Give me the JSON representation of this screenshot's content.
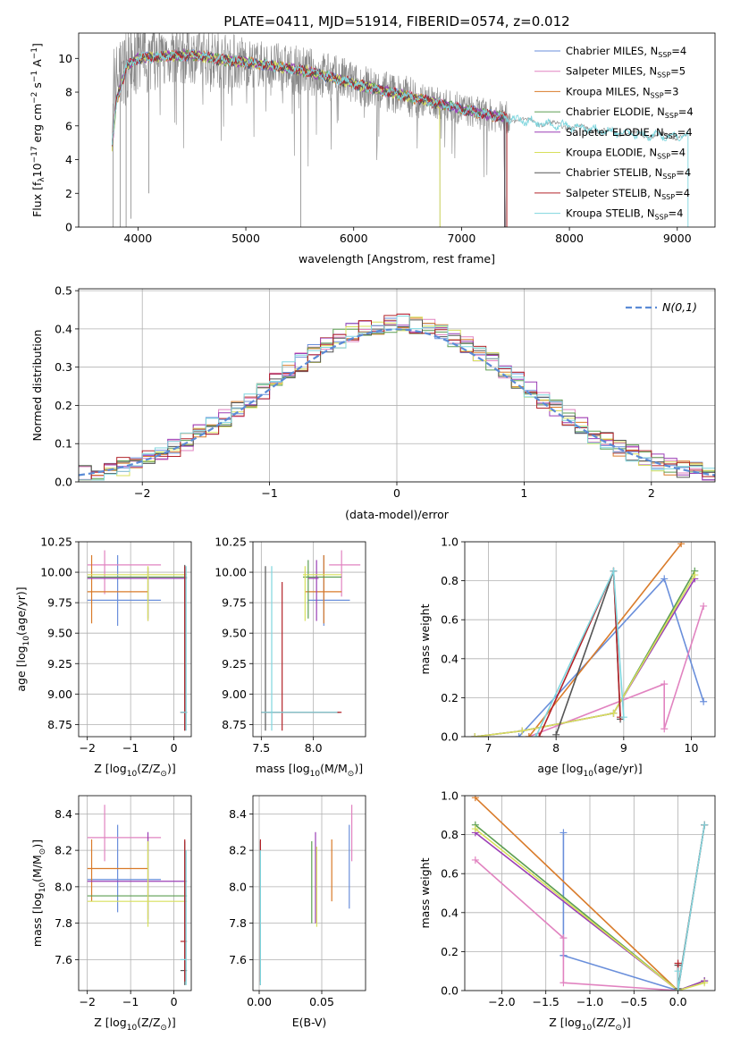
{
  "title": "PLATE=0411, MJD=51914, FIBERID=0574, z=0.012",
  "colors": {
    "Chabrier MILES": "#6a8fdb",
    "Salpeter MILES": "#e183c0",
    "Kroupa MILES": "#d97b2a",
    "Chabrier ELODIE": "#5c9e52",
    "Salpeter ELODIE": "#9b3fb6",
    "Kroupa ELODIE": "#d8e05c",
    "Chabrier STELIB": "#555555",
    "Salpeter STELIB": "#b3242a",
    "Kroupa STELIB": "#7fd6de",
    "data": "#888888",
    "normal": "#5b8bd6"
  },
  "chart_data": [
    {
      "type": "line",
      "panel": "spectrum",
      "xlabel": "wavelength [Angstrom, rest frame]",
      "ylabel_parts": {
        "a": "Flux [f",
        "b": "λ",
        "c": "10",
        "d": "−17",
        "e": " erg cm",
        "f": "−2",
        "g": " s",
        "h": "−1",
        "i": " A",
        "j": "−1",
        "k": "]"
      },
      "xlim": [
        3450,
        9350
      ],
      "ylim": [
        0,
        11.5
      ],
      "xticks": [
        4000,
        5000,
        6000,
        7000,
        8000,
        9000
      ],
      "yticks": [
        0,
        2,
        4,
        6,
        8,
        10
      ],
      "legend_position": "upper right",
      "legend": [
        {
          "base": "Chabrier MILES, N",
          "sub": "SSP",
          "tail": "=4"
        },
        {
          "base": "Salpeter MILES, N",
          "sub": "SSP",
          "tail": "=5"
        },
        {
          "base": "Kroupa MILES, N",
          "sub": "SSP",
          "tail": "=3"
        },
        {
          "base": "Chabrier ELODIE, N",
          "sub": "SSP",
          "tail": "=4"
        },
        {
          "base": "Salpeter ELODIE, N",
          "sub": "SSP",
          "tail": "=4"
        },
        {
          "base": "Kroupa ELODIE, N",
          "sub": "SSP",
          "tail": "=4"
        },
        {
          "base": "Chabrier STELIB, N",
          "sub": "SSP",
          "tail": "=4"
        },
        {
          "base": "Salpeter STELIB, N",
          "sub": "SSP",
          "tail": "=4"
        },
        {
          "base": "Kroupa STELIB, N",
          "sub": "SSP",
          "tail": "=4"
        }
      ],
      "continuum": [
        [
          3760,
          6.8
        ],
        [
          3800,
          8.9
        ],
        [
          3900,
          9.6
        ],
        [
          4000,
          10.0
        ],
        [
          4200,
          10.1
        ],
        [
          4500,
          10.2
        ],
        [
          4800,
          9.9
        ],
        [
          5200,
          9.6
        ],
        [
          5600,
          9.2
        ],
        [
          6000,
          8.5
        ],
        [
          6400,
          7.9
        ],
        [
          6800,
          7.3
        ],
        [
          7200,
          6.7
        ],
        [
          7500,
          6.4
        ],
        [
          7800,
          6.1
        ],
        [
          8000,
          6.0
        ],
        [
          8300,
          5.7
        ],
        [
          8600,
          5.5
        ],
        [
          8900,
          5.4
        ],
        [
          9100,
          5.4
        ]
      ],
      "model_coverage": {
        "Kroupa STELIB": [
          3760,
          9100
        ],
        "Salpeter STELIB": [
          3760,
          7420
        ],
        "Kroupa ELODIE": [
          3760,
          6800
        ]
      }
    },
    {
      "type": "step",
      "panel": "residual_distribution",
      "xlabel": "(data-model)/error",
      "ylabel": "Normed distribution",
      "xlim": [
        -2.5,
        2.5
      ],
      "ylim": [
        0,
        0.505
      ],
      "xticks": [
        -2,
        -1,
        0,
        1,
        2
      ],
      "yticks": [
        0.0,
        0.1,
        0.2,
        0.3,
        0.4,
        0.5
      ],
      "bin_width": 0.1,
      "bin_start": -2.5,
      "legend_label": "N(0,1)",
      "reference_curve": "standard normal"
    },
    {
      "type": "errorbar",
      "panel": "age_vs_Z",
      "xlabel_parts": {
        "a": "Z [log",
        "b": "10",
        "c": "(Z/Z",
        "d": "⊙",
        "e": ")]"
      },
      "ylabel_parts": {
        "a": "age  [log",
        "b": "10",
        "c": "(age/yr)]"
      },
      "xlim": [
        -2.2,
        0.4
      ],
      "ylim": [
        8.65,
        10.25
      ],
      "xticks": [
        -2,
        -1,
        0
      ],
      "yticks": [
        8.75,
        9.0,
        9.25,
        9.5,
        9.75,
        10.0,
        10.25
      ],
      "points": [
        {
          "m": "Chabrier MILES",
          "x": -1.3,
          "xl": -2.0,
          "xh": -0.3,
          "y": 9.77,
          "yl": 9.56,
          "yh": 10.14
        },
        {
          "m": "Salpeter MILES",
          "x": -1.6,
          "xl": -2.0,
          "xh": -0.3,
          "y": 10.06,
          "yl": 9.82,
          "yh": 10.18
        },
        {
          "m": "Kroupa MILES",
          "x": -1.9,
          "xl": -2.0,
          "xh": -0.6,
          "y": 9.84,
          "yl": 9.58,
          "yh": 10.14
        },
        {
          "m": "Chabrier ELODIE",
          "x": -0.6,
          "xl": -2.0,
          "xh": 0.3,
          "y": 9.96,
          "yl": 9.62,
          "yh": 10.04
        },
        {
          "m": "Salpeter ELODIE",
          "x": -0.6,
          "xl": -2.0,
          "xh": 0.3,
          "y": 9.95,
          "yl": 9.6,
          "yh": 10.04
        },
        {
          "m": "Kroupa ELODIE",
          "x": -0.6,
          "xl": -2.0,
          "xh": 0.3,
          "y": 9.98,
          "yl": 9.6,
          "yh": 10.05
        },
        {
          "m": "Chabrier STELIB",
          "x": 0.25,
          "xl": 0.15,
          "xh": 0.3,
          "y": 8.85,
          "yl": 8.7,
          "yh": 10.06
        },
        {
          "m": "Salpeter STELIB",
          "x": 0.25,
          "xl": 0.15,
          "xh": 0.3,
          "y": 8.85,
          "yl": 8.7,
          "yh": 10.05
        },
        {
          "m": "Kroupa STELIB",
          "x": 0.28,
          "xl": 0.15,
          "xh": 0.3,
          "y": 8.85,
          "yl": 8.7,
          "yh": 10.05
        }
      ]
    },
    {
      "type": "errorbar",
      "panel": "age_vs_mass",
      "xlabel_parts": {
        "a": "mass [log",
        "b": "10",
        "c": "(M/M",
        "d": "⊙",
        "e": ")]"
      },
      "xlim": [
        7.42,
        8.5
      ],
      "ylim": [
        8.65,
        10.25
      ],
      "xticks": [
        7.5,
        8.0
      ],
      "yticks": [
        8.75,
        9.0,
        9.25,
        9.5,
        9.75,
        10.0,
        10.25
      ],
      "points": [
        {
          "m": "Chabrier MILES",
          "x": 8.1,
          "xl": 7.95,
          "xh": 8.35,
          "y": 9.77,
          "yl": 9.56,
          "yh": 10.14
        },
        {
          "m": "Salpeter MILES",
          "x": 8.27,
          "xl": 8.15,
          "xh": 8.45,
          "y": 10.06,
          "yl": 9.8,
          "yh": 10.18
        },
        {
          "m": "Kroupa MILES",
          "x": 8.1,
          "xl": 7.92,
          "xh": 8.27,
          "y": 9.84,
          "yl": 9.58,
          "yh": 10.14
        },
        {
          "m": "Chabrier ELODIE",
          "x": 7.95,
          "xl": 7.9,
          "xh": 8.27,
          "y": 9.96,
          "yl": 9.62,
          "yh": 10.1
        },
        {
          "m": "Salpeter ELODIE",
          "x": 8.03,
          "xl": 7.95,
          "xh": 8.05,
          "y": 9.95,
          "yl": 9.6,
          "yh": 10.1
        },
        {
          "m": "Kroupa ELODIE",
          "x": 7.92,
          "xl": 7.9,
          "xh": 8.27,
          "y": 9.98,
          "yl": 9.6,
          "yh": 10.05
        },
        {
          "m": "Chabrier STELIB",
          "x": 7.54,
          "xl": 7.5,
          "xh": 8.25,
          "y": 8.85,
          "yl": 8.7,
          "yh": 10.05
        },
        {
          "m": "Salpeter STELIB",
          "x": 7.7,
          "xl": 7.5,
          "xh": 8.27,
          "y": 8.85,
          "yl": 8.7,
          "yh": 9.92
        },
        {
          "m": "Kroupa STELIB",
          "x": 7.6,
          "xl": 7.5,
          "xh": 8.23,
          "y": 8.85,
          "yl": 8.7,
          "yh": 10.05
        }
      ]
    },
    {
      "type": "line",
      "panel": "mass_weight_vs_age",
      "xlabel_parts": {
        "a": "age  [log",
        "b": "10",
        "c": "(age/yr)]"
      },
      "ylabel": "mass weight",
      "xlim": [
        6.65,
        10.35
      ],
      "ylim": [
        0,
        1.0
      ],
      "xticks": [
        7,
        8,
        9,
        10
      ],
      "yticks": [
        0.0,
        0.2,
        0.4,
        0.6,
        0.8,
        1.0
      ],
      "series": [
        {
          "m": "Chabrier MILES",
          "x": [
            7.45,
            9.6,
            10.18
          ],
          "y": [
            0.0,
            0.81,
            0.18
          ]
        },
        {
          "m": "Salpeter MILES",
          "x": [
            7.6,
            9.6,
            9.6,
            10.18
          ],
          "y": [
            0.0,
            0.27,
            0.04,
            0.67
          ]
        },
        {
          "m": "Kroupa MILES",
          "x": [
            7.6,
            9.85
          ],
          "y": [
            0.0,
            0.99
          ]
        },
        {
          "m": "Chabrier ELODIE",
          "x": [
            6.8,
            7.5,
            8.85,
            10.05
          ],
          "y": [
            0.0,
            0.03,
            0.12,
            0.85
          ]
        },
        {
          "m": "Salpeter ELODIE",
          "x": [
            6.8,
            7.5,
            8.85,
            10.05
          ],
          "y": [
            0.0,
            0.03,
            0.12,
            0.81
          ]
        },
        {
          "m": "Kroupa ELODIE",
          "x": [
            6.8,
            7.5,
            8.85,
            10.05
          ],
          "y": [
            0.0,
            0.03,
            0.12,
            0.83
          ]
        },
        {
          "m": "Chabrier STELIB",
          "x": [
            8.0,
            8.85,
            8.95
          ],
          "y": [
            0.01,
            0.85,
            0.09
          ]
        },
        {
          "m": "Salpeter STELIB",
          "x": [
            7.75,
            8.85,
            8.95
          ],
          "y": [
            0.0,
            0.85,
            0.1
          ]
        },
        {
          "m": "Kroupa STELIB",
          "x": [
            7.7,
            8.85,
            9.0
          ],
          "y": [
            0.0,
            0.85,
            0.1
          ]
        }
      ]
    },
    {
      "type": "errorbar",
      "panel": "mass_vs_Z",
      "xlabel_parts": {
        "a": "Z [log",
        "b": "10",
        "c": "(Z/Z",
        "d": "⊙",
        "e": ")]"
      },
      "ylabel_parts": {
        "a": "mass [log",
        "b": "10",
        "c": "(M/M",
        "d": "⊙",
        "e": ")]"
      },
      "xlim": [
        -2.2,
        0.4
      ],
      "ylim": [
        7.43,
        8.5
      ],
      "xticks": [
        -2,
        -1,
        0
      ],
      "yticks": [
        7.6,
        7.8,
        8.0,
        8.2,
        8.4
      ],
      "points": [
        {
          "m": "Chabrier MILES",
          "x": -1.3,
          "xl": -2.0,
          "xh": -0.3,
          "y": 8.04,
          "yl": 7.86,
          "yh": 8.34
        },
        {
          "m": "Salpeter MILES",
          "x": -1.6,
          "xl": -2.0,
          "xh": -0.3,
          "y": 8.27,
          "yl": 8.14,
          "yh": 8.45
        },
        {
          "m": "Kroupa MILES",
          "x": -1.9,
          "xl": -2.0,
          "xh": -0.6,
          "y": 8.1,
          "yl": 7.92,
          "yh": 8.26
        },
        {
          "m": "Chabrier ELODIE",
          "x": -0.6,
          "xl": -2.0,
          "xh": 0.3,
          "y": 7.95,
          "yl": 7.8,
          "yh": 8.27
        },
        {
          "m": "Salpeter ELODIE",
          "x": -0.6,
          "xl": -2.0,
          "xh": 0.3,
          "y": 8.03,
          "yl": 7.82,
          "yh": 8.3
        },
        {
          "m": "Kroupa ELODIE",
          "x": -0.6,
          "xl": -2.0,
          "xh": 0.3,
          "y": 7.92,
          "yl": 7.78,
          "yh": 8.25
        },
        {
          "m": "Chabrier STELIB",
          "x": 0.25,
          "xl": 0.15,
          "xh": 0.3,
          "y": 7.54,
          "yl": 7.46,
          "yh": 8.25
        },
        {
          "m": "Salpeter STELIB",
          "x": 0.25,
          "xl": 0.15,
          "xh": 0.3,
          "y": 7.7,
          "yl": 7.48,
          "yh": 8.26
        },
        {
          "m": "Kroupa STELIB",
          "x": 0.28,
          "xl": 0.15,
          "xh": 0.3,
          "y": 7.6,
          "yl": 7.46,
          "yh": 8.2
        }
      ]
    },
    {
      "type": "errorbar",
      "panel": "mass_vs_EBV",
      "xlabel": "E(B-V)",
      "xlim": [
        -0.005,
        0.085
      ],
      "ylim": [
        7.43,
        8.5
      ],
      "xticks": [
        0.0,
        0.05
      ],
      "yticks": [
        7.6,
        7.8,
        8.0,
        8.2,
        8.4
      ],
      "points": [
        {
          "m": "Chabrier MILES",
          "x": 0.072,
          "y": 8.1,
          "yl": 7.88,
          "yh": 8.34
        },
        {
          "m": "Salpeter MILES",
          "x": 0.074,
          "y": 8.27,
          "yl": 8.14,
          "yh": 8.45
        },
        {
          "m": "Kroupa MILES",
          "x": 0.058,
          "y": 8.1,
          "yl": 7.92,
          "yh": 8.26
        },
        {
          "m": "Chabrier ELODIE",
          "x": 0.042,
          "y": 8.0,
          "yl": 7.8,
          "yh": 8.25
        },
        {
          "m": "Salpeter ELODIE",
          "x": 0.045,
          "y": 8.03,
          "yl": 7.8,
          "yh": 8.3
        },
        {
          "m": "Kroupa ELODIE",
          "x": 0.046,
          "y": 7.95,
          "yl": 7.78,
          "yh": 8.22
        },
        {
          "m": "Chabrier STELIB",
          "x": 0.001,
          "y": 7.54,
          "yl": 7.46,
          "yh": 8.25
        },
        {
          "m": "Salpeter STELIB",
          "x": 0.001,
          "y": 7.7,
          "yl": 7.48,
          "yh": 8.26
        },
        {
          "m": "Kroupa STELIB",
          "x": 0.001,
          "y": 7.6,
          "yl": 7.46,
          "yh": 8.2
        }
      ]
    },
    {
      "type": "line",
      "panel": "mass_weight_vs_Z",
      "xlabel_parts": {
        "a": "Z [log",
        "b": "10",
        "c": "(Z/Z",
        "d": "⊙",
        "e": ")]"
      },
      "ylabel": "mass weight",
      "xlim": [
        -2.42,
        0.42
      ],
      "ylim": [
        0,
        1.0
      ],
      "xticks": [
        -2.0,
        -1.5,
        -1.0,
        -0.5,
        0.0
      ],
      "yticks": [
        0.0,
        0.2,
        0.4,
        0.6,
        0.8,
        1.0
      ],
      "series": [
        {
          "m": "Chabrier MILES",
          "x": [
            -1.3,
            -1.3,
            -1.3,
            0.0
          ],
          "y": [
            0.81,
            0.18,
            0.18,
            0.0
          ]
        },
        {
          "m": "Salpeter MILES",
          "x": [
            -2.3,
            -1.3,
            -1.3,
            0.0
          ],
          "y": [
            0.67,
            0.27,
            0.04,
            0.0
          ]
        },
        {
          "m": "Kroupa MILES",
          "x": [
            -2.3,
            0.0
          ],
          "y": [
            0.99,
            0.0
          ]
        },
        {
          "m": "Chabrier ELODIE",
          "x": [
            -2.3,
            0.0,
            0.3
          ],
          "y": [
            0.85,
            0.0,
            0.05
          ]
        },
        {
          "m": "Salpeter ELODIE",
          "x": [
            -2.3,
            0.0,
            0.3
          ],
          "y": [
            0.81,
            0.0,
            0.05
          ]
        },
        {
          "m": "Kroupa ELODIE",
          "x": [
            -2.3,
            0.0,
            0.3
          ],
          "y": [
            0.83,
            0.0,
            0.04
          ]
        },
        {
          "m": "Chabrier STELIB",
          "x": [
            0.0,
            0.0,
            0.3
          ],
          "y": [
            0.13,
            0.01,
            0.85
          ]
        },
        {
          "m": "Salpeter STELIB",
          "x": [
            0.0,
            0.0,
            0.3
          ],
          "y": [
            0.14,
            0.0,
            0.85
          ]
        },
        {
          "m": "Kroupa STELIB",
          "x": [
            0.0,
            0.0,
            0.3
          ],
          "y": [
            0.1,
            0.0,
            0.85
          ]
        }
      ]
    }
  ]
}
